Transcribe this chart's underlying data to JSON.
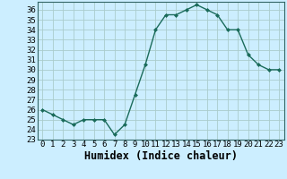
{
  "x": [
    0,
    1,
    2,
    3,
    4,
    5,
    6,
    7,
    8,
    9,
    10,
    11,
    12,
    13,
    14,
    15,
    16,
    17,
    18,
    19,
    20,
    21,
    22,
    23
  ],
  "y": [
    26,
    25.5,
    25,
    24.5,
    25,
    25,
    25,
    23.5,
    24.5,
    27.5,
    30.5,
    34,
    35.5,
    35.5,
    36,
    36.5,
    36,
    35.5,
    34,
    34,
    31.5,
    30.5,
    30,
    30
  ],
  "line_color": "#1a6b5a",
  "marker": "D",
  "marker_size": 2.0,
  "bg_color": "#cceeff",
  "grid_color_major": "#aacccc",
  "grid_color_minor": "#bbdddd",
  "xlabel": "Humidex (Indice chaleur)",
  "ylim": [
    23,
    36.8
  ],
  "xlim": [
    -0.5,
    23.5
  ],
  "yticks": [
    23,
    24,
    25,
    26,
    27,
    28,
    29,
    30,
    31,
    32,
    33,
    34,
    35,
    36
  ],
  "xticks": [
    0,
    1,
    2,
    3,
    4,
    5,
    6,
    7,
    8,
    9,
    10,
    11,
    12,
    13,
    14,
    15,
    16,
    17,
    18,
    19,
    20,
    21,
    22,
    23
  ],
  "xtick_labels": [
    "0",
    "1",
    "2",
    "3",
    "4",
    "5",
    "6",
    "7",
    "8",
    "9",
    "10",
    "11",
    "12",
    "13",
    "14",
    "15",
    "16",
    "17",
    "18",
    "19",
    "20",
    "21",
    "22",
    "23"
  ],
  "tick_fontsize": 6.5,
  "xlabel_fontsize": 8.5,
  "spine_color": "#336666",
  "linewidth": 1.0
}
